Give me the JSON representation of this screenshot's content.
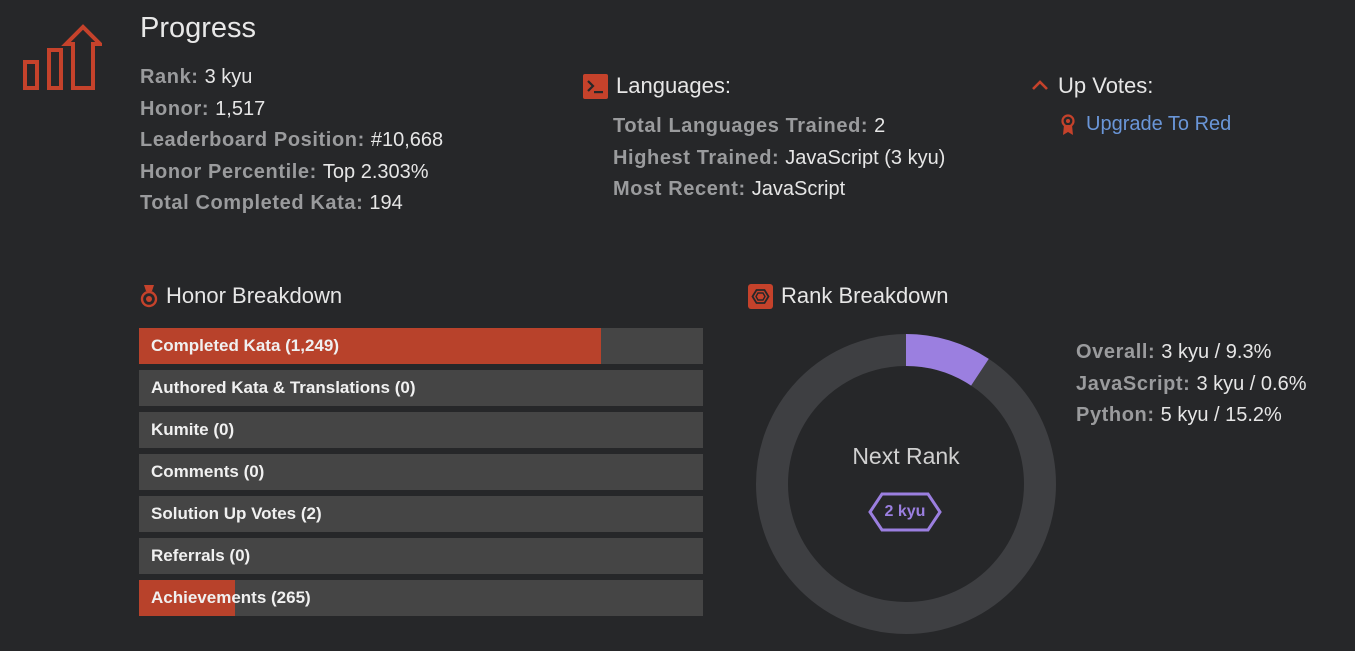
{
  "page": {
    "title": "Progress"
  },
  "profile_stats": [
    {
      "key": "Rank:",
      "value": "3 kyu"
    },
    {
      "key": "Honor:",
      "value": "1,517"
    },
    {
      "key": "Leaderboard Position:",
      "value": "#10,668"
    },
    {
      "key": "Honor Percentile:",
      "value": "Top 2.303%"
    },
    {
      "key": "Total Completed Kata:",
      "value": "194"
    }
  ],
  "languages": {
    "title": "Languages:",
    "icon": "terminal-icon",
    "rows": [
      {
        "key": "Total Languages Trained:",
        "value": "2"
      },
      {
        "key": "Highest Trained:",
        "value": "JavaScript (3 kyu)"
      },
      {
        "key": "Most Recent:",
        "value": "JavaScript"
      }
    ]
  },
  "up_votes": {
    "title": "Up Votes:",
    "icon": "chevron-up-icon",
    "link_label": "Upgrade To Red",
    "link_icon": "ribbon-icon"
  },
  "honor_breakdown": {
    "title": "Honor Breakdown",
    "icon": "medal-icon",
    "bars": [
      {
        "label": "Completed Kata (1,249)",
        "fill": 0.82
      },
      {
        "label": "Authored Kata & Translations (0)",
        "fill": 0
      },
      {
        "label": "Kumite (0)",
        "fill": 0
      },
      {
        "label": "Comments (0)",
        "fill": 0
      },
      {
        "label": "Solution Up Votes (2)",
        "fill": 0
      },
      {
        "label": "Referrals (0)",
        "fill": 0
      },
      {
        "label": "Achievements (265)",
        "fill": 0.17
      }
    ]
  },
  "rank_breakdown": {
    "title": "Rank Breakdown",
    "icon": "hexagon-icon",
    "progress_fraction": 0.093,
    "next_rank_label": "Next Rank",
    "next_rank_badge": "2 kyu",
    "rows": [
      {
        "key": "Overall:",
        "value": "3 kyu / 9.3%"
      },
      {
        "key": "JavaScript:",
        "value": "3 kyu / 0.6%"
      },
      {
        "key": "Python:",
        "value": "5 kyu / 15.2%"
      }
    ]
  },
  "colors": {
    "accent": "#b8422b",
    "icon_red": "#c5422b",
    "link": "#6a96d8",
    "rank_purple": "#9b7fe0",
    "bar_track": "#454545",
    "donut_track": "#3e3f42"
  }
}
